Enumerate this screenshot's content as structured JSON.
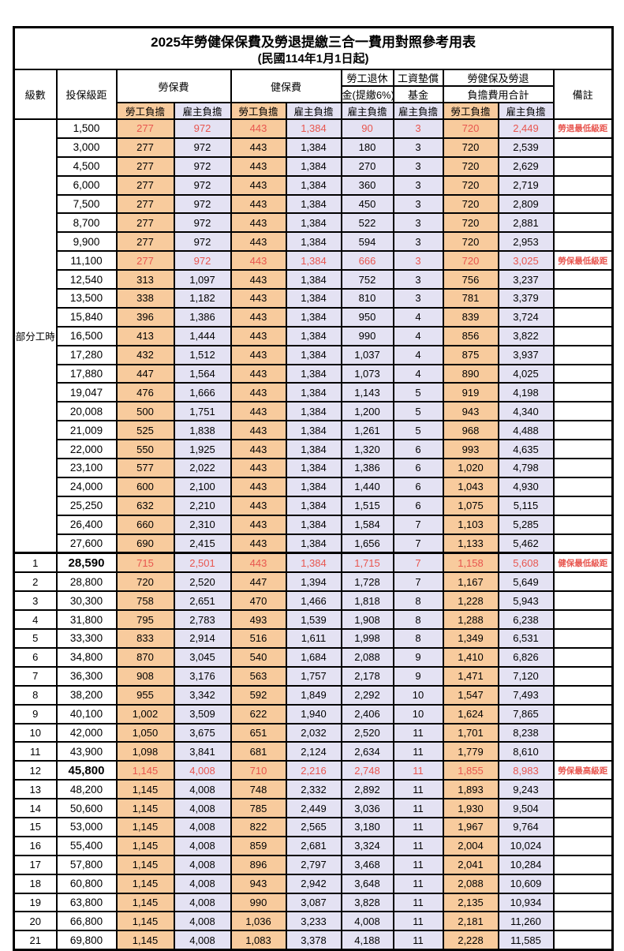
{
  "title": "2025年勞健保保費及勞退提繳三合一費用對照參考用表",
  "subtitle": "(民國114年1月1日起)",
  "colors": {
    "worker_col_bg": "#F8CB9D",
    "employer_col_bg": "#E4E2F3",
    "highlight_text": "#E8564F",
    "border": "#000000"
  },
  "header": {
    "level": "級數",
    "salary": "投保級距",
    "labor_insurance": "勞保費",
    "health_insurance": "健保費",
    "pension_line1": "勞工退休",
    "pension_line2": "金(提繳6%)",
    "wage_fund_line1": "工資墊償",
    "wage_fund_line2": "基金",
    "total_line1": "勞健保及勞退",
    "total_line2": "負擔費用合計",
    "remark": "備註",
    "worker_share": "勞工負擔",
    "employer_share": "雇主負擔"
  },
  "part_time_label": "部分工時",
  "part_time_row_count": 23,
  "rows": [
    {
      "level": "",
      "salary": "1,500",
      "cells": [
        "277",
        "972",
        "443",
        "1,384",
        "90",
        "3",
        "720",
        "2,449"
      ],
      "remark": "勞退最低級距",
      "highlight": true,
      "bold_salary": false
    },
    {
      "level": "",
      "salary": "3,000",
      "cells": [
        "277",
        "972",
        "443",
        "1,384",
        "180",
        "3",
        "720",
        "2,539"
      ],
      "remark": "",
      "highlight": false,
      "bold_salary": false
    },
    {
      "level": "",
      "salary": "4,500",
      "cells": [
        "277",
        "972",
        "443",
        "1,384",
        "270",
        "3",
        "720",
        "2,629"
      ],
      "remark": "",
      "highlight": false,
      "bold_salary": false
    },
    {
      "level": "",
      "salary": "6,000",
      "cells": [
        "277",
        "972",
        "443",
        "1,384",
        "360",
        "3",
        "720",
        "2,719"
      ],
      "remark": "",
      "highlight": false,
      "bold_salary": false
    },
    {
      "level": "",
      "salary": "7,500",
      "cells": [
        "277",
        "972",
        "443",
        "1,384",
        "450",
        "3",
        "720",
        "2,809"
      ],
      "remark": "",
      "highlight": false,
      "bold_salary": false
    },
    {
      "level": "",
      "salary": "8,700",
      "cells": [
        "277",
        "972",
        "443",
        "1,384",
        "522",
        "3",
        "720",
        "2,881"
      ],
      "remark": "",
      "highlight": false,
      "bold_salary": false
    },
    {
      "level": "",
      "salary": "9,900",
      "cells": [
        "277",
        "972",
        "443",
        "1,384",
        "594",
        "3",
        "720",
        "2,953"
      ],
      "remark": "",
      "highlight": false,
      "bold_salary": false
    },
    {
      "level": "",
      "salary": "11,100",
      "cells": [
        "277",
        "972",
        "443",
        "1,384",
        "666",
        "3",
        "720",
        "3,025"
      ],
      "remark": "勞保最低級距",
      "highlight": true,
      "bold_salary": false
    },
    {
      "level": "",
      "salary": "12,540",
      "cells": [
        "313",
        "1,097",
        "443",
        "1,384",
        "752",
        "3",
        "756",
        "3,237"
      ],
      "remark": "",
      "highlight": false,
      "bold_salary": false
    },
    {
      "level": "",
      "salary": "13,500",
      "cells": [
        "338",
        "1,182",
        "443",
        "1,384",
        "810",
        "3",
        "781",
        "3,379"
      ],
      "remark": "",
      "highlight": false,
      "bold_salary": false
    },
    {
      "level": "",
      "salary": "15,840",
      "cells": [
        "396",
        "1,386",
        "443",
        "1,384",
        "950",
        "4",
        "839",
        "3,724"
      ],
      "remark": "",
      "highlight": false,
      "bold_salary": false
    },
    {
      "level": "",
      "salary": "16,500",
      "cells": [
        "413",
        "1,444",
        "443",
        "1,384",
        "990",
        "4",
        "856",
        "3,822"
      ],
      "remark": "",
      "highlight": false,
      "bold_salary": false
    },
    {
      "level": "",
      "salary": "17,280",
      "cells": [
        "432",
        "1,512",
        "443",
        "1,384",
        "1,037",
        "4",
        "875",
        "3,937"
      ],
      "remark": "",
      "highlight": false,
      "bold_salary": false
    },
    {
      "level": "",
      "salary": "17,880",
      "cells": [
        "447",
        "1,564",
        "443",
        "1,384",
        "1,073",
        "4",
        "890",
        "4,025"
      ],
      "remark": "",
      "highlight": false,
      "bold_salary": false
    },
    {
      "level": "",
      "salary": "19,047",
      "cells": [
        "476",
        "1,666",
        "443",
        "1,384",
        "1,143",
        "5",
        "919",
        "4,198"
      ],
      "remark": "",
      "highlight": false,
      "bold_salary": false
    },
    {
      "level": "",
      "salary": "20,008",
      "cells": [
        "500",
        "1,751",
        "443",
        "1,384",
        "1,200",
        "5",
        "943",
        "4,340"
      ],
      "remark": "",
      "highlight": false,
      "bold_salary": false
    },
    {
      "level": "",
      "salary": "21,009",
      "cells": [
        "525",
        "1,838",
        "443",
        "1,384",
        "1,261",
        "5",
        "968",
        "4,488"
      ],
      "remark": "",
      "highlight": false,
      "bold_salary": false
    },
    {
      "level": "",
      "salary": "22,000",
      "cells": [
        "550",
        "1,925",
        "443",
        "1,384",
        "1,320",
        "6",
        "993",
        "4,635"
      ],
      "remark": "",
      "highlight": false,
      "bold_salary": false
    },
    {
      "level": "",
      "salary": "23,100",
      "cells": [
        "577",
        "2,022",
        "443",
        "1,384",
        "1,386",
        "6",
        "1,020",
        "4,798"
      ],
      "remark": "",
      "highlight": false,
      "bold_salary": false
    },
    {
      "level": "",
      "salary": "24,000",
      "cells": [
        "600",
        "2,100",
        "443",
        "1,384",
        "1,440",
        "6",
        "1,043",
        "4,930"
      ],
      "remark": "",
      "highlight": false,
      "bold_salary": false
    },
    {
      "level": "",
      "salary": "25,250",
      "cells": [
        "632",
        "2,210",
        "443",
        "1,384",
        "1,515",
        "6",
        "1,075",
        "5,115"
      ],
      "remark": "",
      "highlight": false,
      "bold_salary": false
    },
    {
      "level": "",
      "salary": "26,400",
      "cells": [
        "660",
        "2,310",
        "443",
        "1,384",
        "1,584",
        "7",
        "1,103",
        "5,285"
      ],
      "remark": "",
      "highlight": false,
      "bold_salary": false
    },
    {
      "level": "",
      "salary": "27,600",
      "cells": [
        "690",
        "2,415",
        "443",
        "1,384",
        "1,656",
        "7",
        "1,133",
        "5,462"
      ],
      "remark": "",
      "highlight": false,
      "bold_salary": false
    },
    {
      "level": "1",
      "salary": "28,590",
      "cells": [
        "715",
        "2,501",
        "443",
        "1,384",
        "1,715",
        "7",
        "1,158",
        "5,608"
      ],
      "remark": "健保最低級距",
      "highlight": true,
      "bold_salary": true,
      "section_top": true
    },
    {
      "level": "2",
      "salary": "28,800",
      "cells": [
        "720",
        "2,520",
        "447",
        "1,394",
        "1,728",
        "7",
        "1,167",
        "5,649"
      ],
      "remark": "",
      "highlight": false,
      "bold_salary": false
    },
    {
      "level": "3",
      "salary": "30,300",
      "cells": [
        "758",
        "2,651",
        "470",
        "1,466",
        "1,818",
        "8",
        "1,228",
        "5,943"
      ],
      "remark": "",
      "highlight": false,
      "bold_salary": false
    },
    {
      "level": "4",
      "salary": "31,800",
      "cells": [
        "795",
        "2,783",
        "493",
        "1,539",
        "1,908",
        "8",
        "1,288",
        "6,238"
      ],
      "remark": "",
      "highlight": false,
      "bold_salary": false
    },
    {
      "level": "5",
      "salary": "33,300",
      "cells": [
        "833",
        "2,914",
        "516",
        "1,611",
        "1,998",
        "8",
        "1,349",
        "6,531"
      ],
      "remark": "",
      "highlight": false,
      "bold_salary": false
    },
    {
      "level": "6",
      "salary": "34,800",
      "cells": [
        "870",
        "3,045",
        "540",
        "1,684",
        "2,088",
        "9",
        "1,410",
        "6,826"
      ],
      "remark": "",
      "highlight": false,
      "bold_salary": false
    },
    {
      "level": "7",
      "salary": "36,300",
      "cells": [
        "908",
        "3,176",
        "563",
        "1,757",
        "2,178",
        "9",
        "1,471",
        "7,120"
      ],
      "remark": "",
      "highlight": false,
      "bold_salary": false
    },
    {
      "level": "8",
      "salary": "38,200",
      "cells": [
        "955",
        "3,342",
        "592",
        "1,849",
        "2,292",
        "10",
        "1,547",
        "7,493"
      ],
      "remark": "",
      "highlight": false,
      "bold_salary": false
    },
    {
      "level": "9",
      "salary": "40,100",
      "cells": [
        "1,002",
        "3,509",
        "622",
        "1,940",
        "2,406",
        "10",
        "1,624",
        "7,865"
      ],
      "remark": "",
      "highlight": false,
      "bold_salary": false
    },
    {
      "level": "10",
      "salary": "42,000",
      "cells": [
        "1,050",
        "3,675",
        "651",
        "2,032",
        "2,520",
        "11",
        "1,701",
        "8,238"
      ],
      "remark": "",
      "highlight": false,
      "bold_salary": false
    },
    {
      "level": "11",
      "salary": "43,900",
      "cells": [
        "1,098",
        "3,841",
        "681",
        "2,124",
        "2,634",
        "11",
        "1,779",
        "8,610"
      ],
      "remark": "",
      "highlight": false,
      "bold_salary": false
    },
    {
      "level": "12",
      "salary": "45,800",
      "cells": [
        "1,145",
        "4,008",
        "710",
        "2,216",
        "2,748",
        "11",
        "1,855",
        "8,983"
      ],
      "remark": "勞保最高級距",
      "highlight": true,
      "bold_salary": true
    },
    {
      "level": "13",
      "salary": "48,200",
      "cells": [
        "1,145",
        "4,008",
        "748",
        "2,332",
        "2,892",
        "11",
        "1,893",
        "9,243"
      ],
      "remark": "",
      "highlight": false,
      "bold_salary": false
    },
    {
      "level": "14",
      "salary": "50,600",
      "cells": [
        "1,145",
        "4,008",
        "785",
        "2,449",
        "3,036",
        "11",
        "1,930",
        "9,504"
      ],
      "remark": "",
      "highlight": false,
      "bold_salary": false
    },
    {
      "level": "15",
      "salary": "53,000",
      "cells": [
        "1,145",
        "4,008",
        "822",
        "2,565",
        "3,180",
        "11",
        "1,967",
        "9,764"
      ],
      "remark": "",
      "highlight": false,
      "bold_salary": false
    },
    {
      "level": "16",
      "salary": "55,400",
      "cells": [
        "1,145",
        "4,008",
        "859",
        "2,681",
        "3,324",
        "11",
        "2,004",
        "10,024"
      ],
      "remark": "",
      "highlight": false,
      "bold_salary": false
    },
    {
      "level": "17",
      "salary": "57,800",
      "cells": [
        "1,145",
        "4,008",
        "896",
        "2,797",
        "3,468",
        "11",
        "2,041",
        "10,284"
      ],
      "remark": "",
      "highlight": false,
      "bold_salary": false
    },
    {
      "level": "18",
      "salary": "60,800",
      "cells": [
        "1,145",
        "4,008",
        "943",
        "2,942",
        "3,648",
        "11",
        "2,088",
        "10,609"
      ],
      "remark": "",
      "highlight": false,
      "bold_salary": false
    },
    {
      "level": "19",
      "salary": "63,800",
      "cells": [
        "1,145",
        "4,008",
        "990",
        "3,087",
        "3,828",
        "11",
        "2,135",
        "10,934"
      ],
      "remark": "",
      "highlight": false,
      "bold_salary": false
    },
    {
      "level": "20",
      "salary": "66,800",
      "cells": [
        "1,145",
        "4,008",
        "1,036",
        "3,233",
        "4,008",
        "11",
        "2,181",
        "11,260"
      ],
      "remark": "",
      "highlight": false,
      "bold_salary": false
    },
    {
      "level": "21",
      "salary": "69,800",
      "cells": [
        "1,145",
        "4,008",
        "1,083",
        "3,378",
        "4,188",
        "11",
        "2,228",
        "11,585"
      ],
      "remark": "",
      "highlight": false,
      "bold_salary": false
    }
  ]
}
